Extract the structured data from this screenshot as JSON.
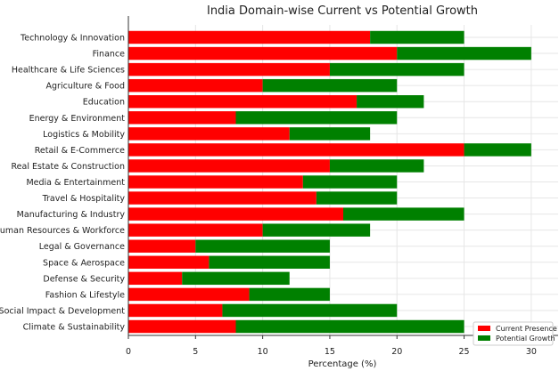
{
  "chart_data": {
    "type": "bar",
    "orientation": "horizontal",
    "stacked": true,
    "title": "India Domain-wise Current vs Potential Growth",
    "xlabel": "Percentage (%)",
    "ylabel": "",
    "xlim": [
      0,
      32
    ],
    "xticks": [
      0,
      5,
      10,
      15,
      20,
      25,
      30
    ],
    "grid": true,
    "legend_position": "lower-right",
    "categories": [
      "Technology & Innovation",
      "Finance",
      "Healthcare & Life Sciences",
      "Agriculture & Food",
      "Education",
      "Energy & Environment",
      "Logistics & Mobility",
      "Retail & E-Commerce",
      "Real Estate & Construction",
      "Media & Entertainment",
      "Travel & Hospitality",
      "Manufacturing & Industry",
      "Human Resources & Workforce",
      "Legal & Governance",
      "Space & Aerospace",
      "Defense & Security",
      "Fashion & Lifestyle",
      "Social Impact & Development",
      "Climate & Sustainability"
    ],
    "series": [
      {
        "name": "Current Presence",
        "color": "#ff0000",
        "values": [
          18,
          20,
          15,
          10,
          17,
          8,
          12,
          25,
          15,
          13,
          14,
          16,
          10,
          5,
          6,
          4,
          9,
          7,
          8
        ]
      },
      {
        "name": "Potential Growth",
        "color": "#008000",
        "values": [
          7,
          10,
          10,
          10,
          5,
          12,
          6,
          5,
          7,
          7,
          6,
          9,
          8,
          10,
          9,
          8,
          6,
          13,
          17
        ]
      }
    ]
  }
}
